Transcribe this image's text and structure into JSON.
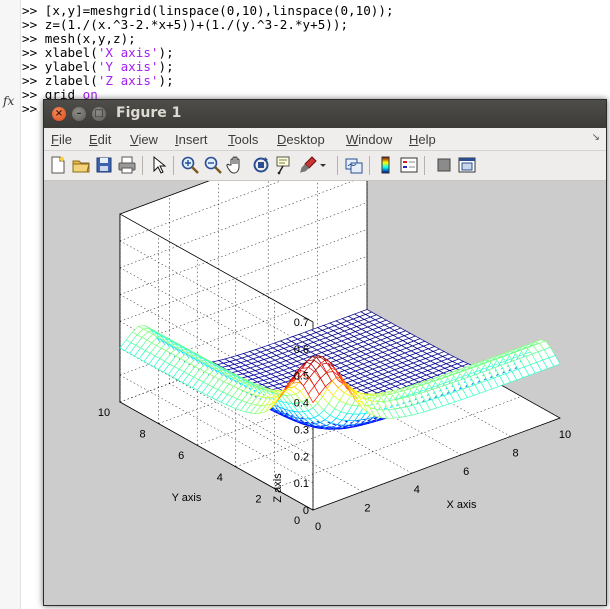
{
  "command_window": {
    "prompt": ">>",
    "lines": [
      {
        "code": " [x,y]=meshgrid(linspace(0,10),linspace(0,10));",
        "string": "",
        "tail": ""
      },
      {
        "code": " z=(1./(x.^3-2.*x+5))+(1./(y.^3-2.*y+5));",
        "string": "",
        "tail": ""
      },
      {
        "code": " mesh(x,y,z);",
        "string": "",
        "tail": ""
      },
      {
        "code": " xlabel(",
        "string": "'X axis'",
        "tail": ");"
      },
      {
        "code": " ylabel(",
        "string": "'Y axis'",
        "tail": ");"
      },
      {
        "code": " zlabel(",
        "string": "'Z axis'",
        "tail": ");"
      },
      {
        "code": " grid ",
        "string": "on",
        "tail": ""
      },
      {
        "code": "",
        "string": "",
        "tail": ""
      }
    ],
    "fx_symbol": "fx"
  },
  "figure_window": {
    "title": "Figure 1",
    "controls": {
      "close": "×",
      "minimize": "–",
      "maximize": "□"
    },
    "menu": [
      {
        "label": "File",
        "underline": "F",
        "rest": "ile"
      },
      {
        "label": "Edit",
        "underline": "E",
        "rest": "dit"
      },
      {
        "label": "View",
        "underline": "V",
        "rest": "iew"
      },
      {
        "label": "Insert",
        "underline": "I",
        "rest": "nsert"
      },
      {
        "label": "Tools",
        "underline": "T",
        "rest": "ools"
      },
      {
        "label": "Desktop",
        "underline": "D",
        "rest": "esktop"
      },
      {
        "label": "Window",
        "underline": "W",
        "rest": "indow"
      },
      {
        "label": "Help",
        "underline": "H",
        "rest": "elp"
      }
    ],
    "menu_overflow": "↘",
    "toolbar": [
      "new-file-icon",
      "open-folder-icon",
      "save-icon",
      "print-icon",
      "select-arrow-icon",
      "zoom-in-icon",
      "zoom-out-icon",
      "pan-hand-icon",
      "rotate-3d-icon",
      "data-cursor-icon",
      "brush-icon",
      "brush-dropdown-icon",
      "link-plot-icon",
      "insert-colorbar-icon",
      "insert-legend-icon",
      "hide-plot-tools-icon",
      "show-plot-tools-icon"
    ]
  },
  "chart_data": {
    "type": "mesh3d",
    "function": "z = 1/(x^3-2x+5) + 1/(y^3-2y+5)",
    "x_range": [
      0,
      10
    ],
    "y_range": [
      0,
      10
    ],
    "zlim": [
      0,
      0.7
    ],
    "xlabel": "X axis",
    "ylabel": "Y axis",
    "zlabel": "Z axis",
    "x_ticks": [
      0,
      2,
      4,
      6,
      8,
      10
    ],
    "y_ticks": [
      0,
      2,
      4,
      6,
      8,
      10
    ],
    "z_ticks": [
      "0",
      "0.1",
      "0.2",
      "0.3",
      "0.4",
      "0.5",
      "0.6",
      "0.7"
    ],
    "z_tick_values": [
      0,
      0.1,
      0.2,
      0.3,
      0.4,
      0.5,
      0.6,
      0.7
    ],
    "grid": true,
    "colormap": "jet",
    "box_color": "#ffffff",
    "background": "#cccccc"
  }
}
